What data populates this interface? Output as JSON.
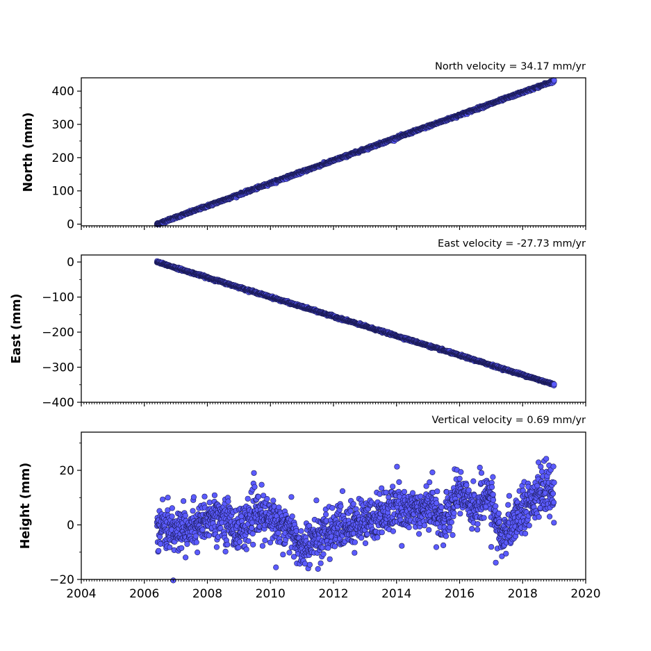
{
  "chart_data": [
    {
      "type": "scatter",
      "title": "North velocity = 34.17 mm/yr",
      "xlabel": "",
      "ylabel": "North (mm)",
      "xlim": [
        2004,
        2020
      ],
      "ylim": [
        -5,
        440
      ],
      "yticks": [
        0,
        100,
        200,
        300,
        400
      ],
      "xticks": [
        2004,
        2006,
        2008,
        2010,
        2012,
        2014,
        2016,
        2018,
        2020
      ],
      "xtick_labels_visible": false,
      "grid": false,
      "start_year": 2006.4,
      "end_year": 2019.0,
      "velocity_mm_per_yr": 34.17,
      "y_start": 0,
      "noise_mm": 1.8,
      "marker_color": "#5b5bff",
      "edge_color": "#1a1a55"
    },
    {
      "type": "scatter",
      "title": "East velocity = -27.73 mm/yr",
      "xlabel": "",
      "ylabel": "East (mm)",
      "xlim": [
        2004,
        2020
      ],
      "ylim": [
        -400,
        20
      ],
      "yticks": [
        0,
        -100,
        -200,
        -300,
        -400
      ],
      "ytick_labels": [
        "0",
        "−100",
        "−200",
        "−300",
        "−400"
      ],
      "xticks": [
        2004,
        2006,
        2008,
        2010,
        2012,
        2014,
        2016,
        2018,
        2020
      ],
      "xtick_labels_visible": false,
      "grid": false,
      "start_year": 2006.4,
      "end_year": 2019.0,
      "velocity_mm_per_yr": -27.73,
      "y_start": 0,
      "noise_mm": 1.5,
      "marker_color": "#5b5bff",
      "edge_color": "#1a1a55"
    },
    {
      "type": "scatter",
      "title": "Vertical velocity = 0.69 mm/yr",
      "xlabel": "",
      "ylabel": "Height (mm)",
      "xlim": [
        2004,
        2020
      ],
      "ylim": [
        -20,
        34
      ],
      "yticks": [
        -20,
        0,
        20
      ],
      "ytick_labels": [
        "−20",
        "0",
        "20"
      ],
      "xticks": [
        2004,
        2006,
        2008,
        2010,
        2012,
        2014,
        2016,
        2018,
        2020
      ],
      "xtick_labels_visible": true,
      "grid": false,
      "start_year": 2006.4,
      "end_year": 2019.0,
      "trend_points": [
        [
          2006.4,
          1
        ],
        [
          2007.0,
          -3
        ],
        [
          2007.5,
          0
        ],
        [
          2008.0,
          2
        ],
        [
          2008.5,
          3
        ],
        [
          2009.0,
          -2
        ],
        [
          2009.5,
          4
        ],
        [
          2010.0,
          2
        ],
        [
          2010.5,
          0
        ],
        [
          2011.0,
          -9
        ],
        [
          2011.5,
          -5
        ],
        [
          2012.0,
          -2
        ],
        [
          2012.5,
          0
        ],
        [
          2013.0,
          1
        ],
        [
          2013.5,
          4
        ],
        [
          2014.0,
          6
        ],
        [
          2014.5,
          5
        ],
        [
          2015.0,
          8
        ],
        [
          2015.5,
          1
        ],
        [
          2016.0,
          13
        ],
        [
          2016.5,
          6
        ],
        [
          2017.0,
          12
        ],
        [
          2017.3,
          -7
        ],
        [
          2017.7,
          2
        ],
        [
          2018.0,
          6
        ],
        [
          2018.5,
          11
        ],
        [
          2019.0,
          12
        ]
      ],
      "noise_mm": 4.0,
      "marker_color": "#5b5bff",
      "edge_color": "#1a1a55"
    }
  ]
}
